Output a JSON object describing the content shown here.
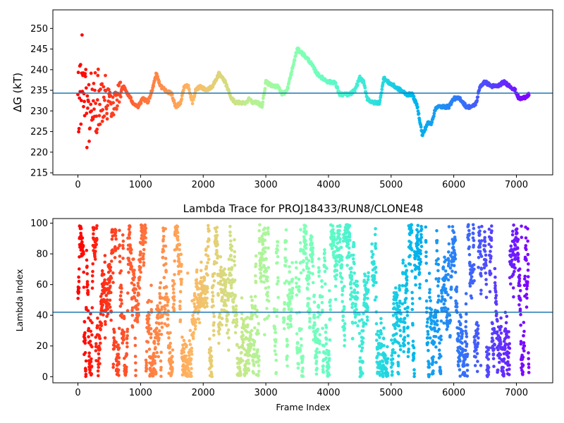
{
  "chart_data": [
    {
      "type": "scatter",
      "title": "",
      "xlabel": "",
      "ylabel": "ΔG (kT)",
      "xlim": [
        -400,
        7580
      ],
      "ylim": [
        214.5,
        254.5
      ],
      "xticks": [
        0,
        1000,
        2000,
        3000,
        4000,
        5000,
        6000,
        7000
      ],
      "yticks": [
        215,
        220,
        225,
        230,
        235,
        240,
        245,
        250
      ],
      "grid": false,
      "colormap": "rainbow",
      "hline": {
        "y": 234.3,
        "color": "#1f77b4"
      },
      "trend": [
        [
          0,
          230
        ],
        [
          50,
          238
        ],
        [
          100,
          236
        ],
        [
          150,
          229
        ],
        [
          200,
          232
        ],
        [
          260,
          231
        ],
        [
          330,
          233
        ],
        [
          400,
          234
        ],
        [
          480,
          233
        ],
        [
          560,
          232
        ],
        [
          640,
          234
        ],
        [
          720,
          236
        ],
        [
          800,
          234
        ],
        [
          880,
          232
        ],
        [
          960,
          231
        ],
        [
          1040,
          233
        ],
        [
          1120,
          232
        ],
        [
          1200,
          236
        ],
        [
          1250,
          239
        ],
        [
          1320,
          236
        ],
        [
          1400,
          235
        ],
        [
          1500,
          234
        ],
        [
          1560,
          231
        ],
        [
          1640,
          232
        ],
        [
          1700,
          236
        ],
        [
          1760,
          236
        ],
        [
          1830,
          232
        ],
        [
          1880,
          235
        ],
        [
          1950,
          236
        ],
        [
          2050,
          235
        ],
        [
          2150,
          236
        ],
        [
          2250,
          239
        ],
        [
          2350,
          237
        ],
        [
          2450,
          233
        ],
        [
          2520,
          232
        ],
        [
          2600,
          232
        ],
        [
          2680,
          232
        ],
        [
          2740,
          233
        ],
        [
          2800,
          232
        ],
        [
          2880,
          232
        ],
        [
          2940,
          231
        ],
        [
          3000,
          237
        ],
        [
          3100,
          236
        ],
        [
          3200,
          236
        ],
        [
          3260,
          234
        ],
        [
          3340,
          235
        ],
        [
          3420,
          240
        ],
        [
          3500,
          245
        ],
        [
          3580,
          244
        ],
        [
          3700,
          242
        ],
        [
          3820,
          239
        ],
        [
          3900,
          238
        ],
        [
          4000,
          237
        ],
        [
          4100,
          237
        ],
        [
          4180,
          234
        ],
        [
          4260,
          234
        ],
        [
          4340,
          234
        ],
        [
          4420,
          235
        ],
        [
          4500,
          238
        ],
        [
          4560,
          237
        ],
        [
          4620,
          233
        ],
        [
          4700,
          232
        ],
        [
          4820,
          232
        ],
        [
          4880,
          238
        ],
        [
          4950,
          237
        ],
        [
          5050,
          236
        ],
        [
          5150,
          235
        ],
        [
          5250,
          234
        ],
        [
          5340,
          234
        ],
        [
          5420,
          231
        ],
        [
          5500,
          224
        ],
        [
          5580,
          227
        ],
        [
          5640,
          227
        ],
        [
          5720,
          231
        ],
        [
          5820,
          231
        ],
        [
          5920,
          231
        ],
        [
          6000,
          233
        ],
        [
          6100,
          233
        ],
        [
          6200,
          231
        ],
        [
          6300,
          231
        ],
        [
          6360,
          232
        ],
        [
          6420,
          236
        ],
        [
          6500,
          237
        ],
        [
          6600,
          236
        ],
        [
          6700,
          236
        ],
        [
          6800,
          237
        ],
        [
          6900,
          236
        ],
        [
          6980,
          235
        ],
        [
          7040,
          233
        ],
        [
          7100,
          233
        ],
        [
          7200,
          234
        ]
      ]
    },
    {
      "type": "scatter",
      "title": "Lambda Trace for PROJ18433/RUN8/CLONE48",
      "xlabel": "Frame Index",
      "ylabel": "Lambda Index",
      "xlim": [
        -400,
        7580
      ],
      "ylim": [
        -4,
        103
      ],
      "xticks": [
        0,
        1000,
        2000,
        3000,
        4000,
        5000,
        6000,
        7000
      ],
      "yticks": [
        0,
        20,
        40,
        60,
        80,
        100
      ],
      "grid": false,
      "colormap": "rainbow",
      "hline": {
        "y": 42,
        "color": "#1f77b4"
      },
      "frame_range": [
        0,
        7200
      ],
      "lambda_range": [
        0,
        99
      ],
      "dense_blocks": [
        [
          0,
          7200
        ],
        [
          2950,
          3030
        ],
        [
          3300,
          3400
        ],
        [
          3500,
          3550
        ],
        [
          3900,
          3950
        ],
        [
          4350,
          4420
        ],
        [
          4500,
          4560
        ],
        [
          4830,
          4880
        ],
        [
          5350,
          5470
        ],
        [
          5560,
          5600
        ]
      ],
      "empty_gaps": [
        [
          3050,
          3130
        ],
        [
          3200,
          3280
        ],
        [
          3430,
          3480
        ],
        [
          3870,
          3890
        ],
        [
          4470,
          4490
        ],
        [
          4640,
          4690
        ],
        [
          4950,
          5000
        ],
        [
          5160,
          5180
        ],
        [
          5490,
          5550
        ],
        [
          6450,
          6480
        ]
      ]
    }
  ]
}
